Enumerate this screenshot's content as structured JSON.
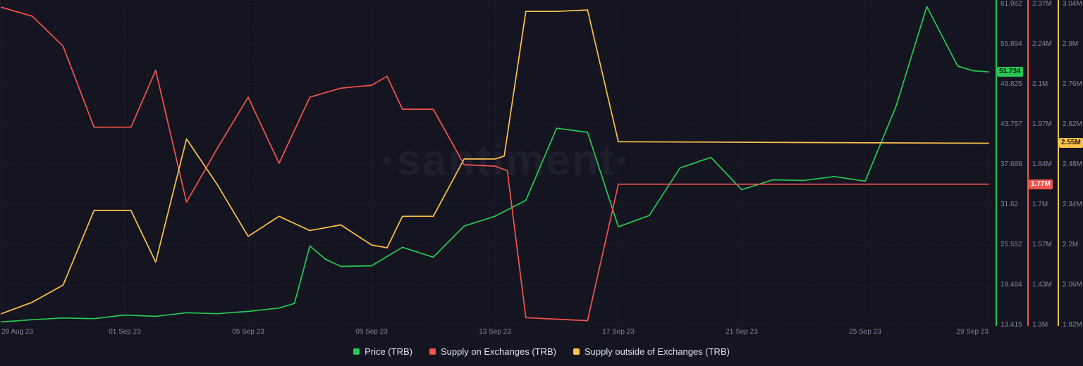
{
  "watermark": "·santiment·",
  "colors": {
    "background": "#151421",
    "price_green": "#26C953",
    "supply_red": "#F5534D",
    "outside_yellow": "#FCC34B"
  },
  "x_axis": {
    "tick_labels": [
      "28 Aug 23",
      "01 Sep 23",
      "05 Sep 23",
      "09 Sep 23",
      "13 Sep 23",
      "17 Sep 23",
      "21 Sep 23",
      "25 Sep 23",
      "29 Sep 23"
    ],
    "tick_days": [
      0,
      4,
      8,
      12,
      16,
      20,
      24,
      28,
      32
    ]
  },
  "chart_data": {
    "type": "line",
    "x_unit": "days from 28 Aug 23 to 29 Sep 23",
    "grid": true,
    "legend_position": "bottom",
    "series": [
      {
        "name": "Price (TRB)",
        "data_name": "price-trb",
        "color": "#26C953",
        "axis_min": 13.415,
        "axis_max": 61.962,
        "axis_ticks_top_to_bottom": [
          "61.962",
          "55.894",
          "49.825",
          "43.757",
          "37.689",
          "31.62",
          "25.552",
          "19.484",
          "13.415"
        ],
        "current_value": 51.734,
        "current_value_label": "51.734",
        "badge_text_color": "#0b1a10",
        "points": [
          [
            0,
            13.9
          ],
          [
            1,
            14.25
          ],
          [
            2,
            14.5
          ],
          [
            3,
            14.4
          ],
          [
            4,
            14.95
          ],
          [
            5,
            14.75
          ],
          [
            6,
            15.3
          ],
          [
            7,
            15.15
          ],
          [
            8,
            15.5
          ],
          [
            9,
            16.0
          ],
          [
            9.5,
            16.7
          ],
          [
            10,
            25.4
          ],
          [
            10.5,
            23.4
          ],
          [
            11,
            22.3
          ],
          [
            12,
            22.4
          ],
          [
            13,
            25.2
          ],
          [
            14,
            23.7
          ],
          [
            15,
            28.4
          ],
          [
            16,
            29.9
          ],
          [
            17,
            32.3
          ],
          [
            18,
            43.2
          ],
          [
            19,
            42.6
          ],
          [
            20,
            28.3
          ],
          [
            21,
            30.0
          ],
          [
            22,
            37.2
          ],
          [
            23,
            38.8
          ],
          [
            24,
            33.9
          ],
          [
            25,
            35.4
          ],
          [
            26,
            35.3
          ],
          [
            27,
            35.9
          ],
          [
            28,
            35.2
          ],
          [
            29,
            46.5
          ],
          [
            30,
            61.6
          ],
          [
            31,
            52.6
          ],
          [
            31.5,
            51.9
          ],
          [
            32,
            51.734
          ]
        ]
      },
      {
        "name": "Supply on Exchanges (TRB)",
        "data_name": "supply-on-exchanges",
        "color": "#F5534D",
        "axis_min": 1.3,
        "axis_max": 2.37,
        "axis_ticks_top_to_bottom": [
          "2.37M",
          "2.24M",
          "2.1M",
          "1.97M",
          "1.84M",
          "1.7M",
          "1.57M",
          "1.43M",
          "1.3M"
        ],
        "current_value": 1.77,
        "current_value_label": "1.77M",
        "badge_text_color": "#ffffff",
        "points": [
          [
            0,
            2.36
          ],
          [
            1,
            2.33
          ],
          [
            2,
            2.23
          ],
          [
            3,
            1.96
          ],
          [
            4.2,
            1.96
          ],
          [
            5,
            2.15
          ],
          [
            6,
            1.71
          ],
          [
            7,
            1.89
          ],
          [
            8,
            2.06
          ],
          [
            9,
            1.84
          ],
          [
            10,
            2.06
          ],
          [
            11,
            2.09
          ],
          [
            12,
            2.1
          ],
          [
            12.5,
            2.13
          ],
          [
            13,
            2.02
          ],
          [
            14,
            2.02
          ],
          [
            15,
            1.835
          ],
          [
            16,
            1.83
          ],
          [
            16.4,
            1.815
          ],
          [
            17,
            1.325
          ],
          [
            18,
            1.32
          ],
          [
            19,
            1.315
          ],
          [
            20,
            1.77
          ],
          [
            32,
            1.77
          ]
        ]
      },
      {
        "name": "Supply outside of Exchanges (TRB)",
        "data_name": "supply-outside-exchanges",
        "color": "#FCC34B",
        "axis_min": 1.92,
        "axis_max": 3.04,
        "axis_ticks_top_to_bottom": [
          "3.04M",
          "2.9M",
          "2.76M",
          "2.62M",
          "2.48M",
          "2.34M",
          "2.2M",
          "2.06M",
          "1.92M"
        ],
        "current_value": 2.555,
        "current_value_label": "2.55M",
        "badge_text_color": "#2a2008",
        "points": [
          [
            0,
            1.96
          ],
          [
            1,
            2.0
          ],
          [
            2,
            2.06
          ],
          [
            3,
            2.32
          ],
          [
            4.2,
            2.32
          ],
          [
            5,
            2.14
          ],
          [
            6,
            2.57
          ],
          [
            7,
            2.41
          ],
          [
            8,
            2.23
          ],
          [
            9,
            2.3
          ],
          [
            10,
            2.25
          ],
          [
            11,
            2.27
          ],
          [
            12,
            2.2
          ],
          [
            12.5,
            2.19
          ],
          [
            13,
            2.3
          ],
          [
            14,
            2.3
          ],
          [
            15,
            2.5
          ],
          [
            16,
            2.5
          ],
          [
            16.3,
            2.51
          ],
          [
            17,
            3.015
          ],
          [
            18,
            3.015
          ],
          [
            19,
            3.02
          ],
          [
            20,
            2.56
          ],
          [
            32,
            2.555
          ]
        ]
      }
    ],
    "legend": [
      "Price (TRB)",
      "Supply on Exchanges (TRB)",
      "Supply outside of Exchanges (TRB)"
    ]
  }
}
